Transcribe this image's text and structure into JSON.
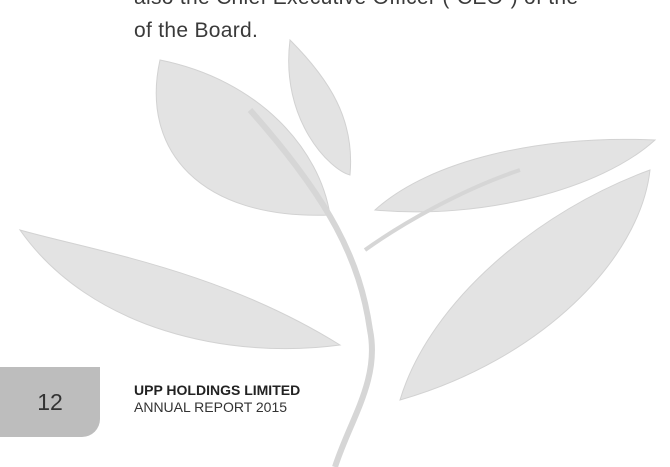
{
  "body": {
    "lines": [
      "also the Chief Executive Officer (“CEO”) of the",
      "of the Board."
    ]
  },
  "footer": {
    "page_number": "12",
    "company": "UPP HOLDINGS LIMITED",
    "report": "ANNUAL REPORT 2015"
  }
}
